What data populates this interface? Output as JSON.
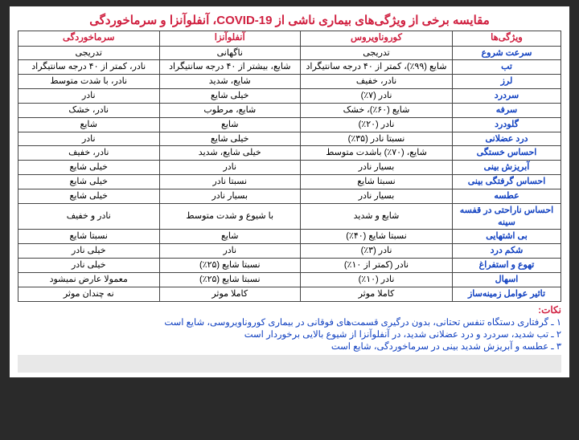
{
  "title": "مقایسه برخی از ویژگی‌های بیماری ناشی از COVID-19، آنفلوآنزا و سرماخوردگی",
  "headers": [
    "ویژگی‌ها",
    "کوروناویروس",
    "آنفلوآنزا",
    "سرماخوردگی"
  ],
  "rows": [
    {
      "feat": "سرعت شروع",
      "c": "تدریجی",
      "f": "ناگهانی",
      "cold": "تدریجی"
    },
    {
      "feat": "تب",
      "c": "شایع (۹۹٪)، کمتر از ۴۰ درجه سانتیگراد",
      "f": "شایع، بیشتر از ۴۰ درجه سانتیگراد",
      "cold": "نادر، کمتر از ۴۰ درجه سانتیگراد"
    },
    {
      "feat": "لرز",
      "c": "نادر، خفیف",
      "f": "شایع، شدید",
      "cold": "نادر، با شدت متوسط"
    },
    {
      "feat": "سردرد",
      "c": "نادر (۷٪)",
      "f": "خیلی شایع",
      "cold": "نادر"
    },
    {
      "feat": "سرفه",
      "c": "شایع (۶۰٪)، خشک",
      "f": "شایع، مرطوب",
      "cold": "نادر، خشک"
    },
    {
      "feat": "گلودرد",
      "c": "نادر (۲۰٪)",
      "f": "شایع",
      "cold": "شایع"
    },
    {
      "feat": "درد عضلانی",
      "c": "نسبتا نادر (۳۵٪)",
      "f": "خیلی شایع",
      "cold": "نادر"
    },
    {
      "feat": "احساس خستگی",
      "c": "شایع، (۷۰٪) باشدت متوسط",
      "f": "خیلی شایع، شدید",
      "cold": "نادر، خفیف"
    },
    {
      "feat": "آبریزش بینی",
      "c": "بسیار نادر",
      "f": "نادر",
      "cold": "خیلی شایع"
    },
    {
      "feat": "احساس گرفتگی بینی",
      "c": "نسبتا شایع",
      "f": "نسبتا نادر",
      "cold": "خیلی شایع"
    },
    {
      "feat": "عطسه",
      "c": "بسیار نادر",
      "f": "بسیار نادر",
      "cold": "خیلی شایع"
    },
    {
      "feat": "احساس ناراحتی در قفسه سینه",
      "c": "شایع و شدید",
      "f": "با شیوع و شدت متوسط",
      "cold": "نادر و خفیف"
    },
    {
      "feat": "بی اشتهایی",
      "c": "نسبتا شایع (۴۰٪)",
      "f": "شایع",
      "cold": "نسبتا شایع"
    },
    {
      "feat": "شکم درد",
      "c": "نادر (۳٪)",
      "f": "نادر",
      "cold": "خیلی نادر"
    },
    {
      "feat": "تهوع و استفراغ",
      "c": "نادر (کمتر از ۱۰٪)",
      "f": "نسبتا شایع (۲۵٪)",
      "cold": "خیلی نادر"
    },
    {
      "feat": "اسهال",
      "c": "نادر (۱۰٪)",
      "f": "نسبتا شایع (۲۵٪)",
      "cold": "معمولا عارض نمیشود"
    },
    {
      "feat": "تاثیر عوامل زمینه‌ساز",
      "c": "کاملا موثر",
      "f": "کاملا موثر",
      "cold": "نه چندان موثر"
    }
  ],
  "notes_label": "نکات:",
  "notes": [
    "۱ ـ گرفتاری دستگاه تنفس تحتانی، بدون درگیری قسمت‌های فوقانی در بیماری کوروناویروسی، شایع است",
    "۲ ـ تب شدید، سردرد و درد عضلانی شدید، در آنفلوآنزا از شیوع بالایی برخوردار است",
    "۳ ـ عطسه و آبریزش شدید بینی در سرماخوردگی، شایع است"
  ]
}
